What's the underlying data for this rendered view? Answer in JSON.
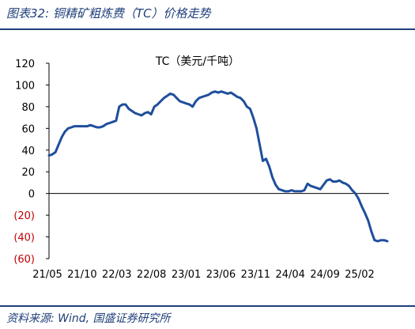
{
  "figure": {
    "title": "图表32:  铜精矿粗炼费（TC）价格走势",
    "source": "资料来源:  Wind,  国盛证券研究所"
  },
  "colors": {
    "line": "#1f4e9c",
    "negative_tick": "#c00000",
    "header_rule": "#1f3f7a"
  },
  "chart_data": {
    "type": "line",
    "title": "TC（美元/千吨）",
    "xlabel": "",
    "ylabel": "",
    "ylim": [
      -60,
      120
    ],
    "yticks": [
      120,
      100,
      80,
      60,
      40,
      20,
      0,
      -20,
      -40,
      -60
    ],
    "ytick_labels": [
      "120",
      "100",
      "80",
      "60",
      "40",
      "20",
      "0",
      "(20)",
      "(40)",
      "(60)"
    ],
    "xticks": [
      "21/05",
      "21/10",
      "22/03",
      "22/08",
      "23/01",
      "23/06",
      "23/11",
      "24/04",
      "24/09",
      "25/02"
    ],
    "grid": false,
    "legend": "none",
    "series": [
      {
        "values": [
          35,
          36,
          38,
          45,
          52,
          57,
          60,
          61,
          62,
          62,
          62,
          62,
          62,
          63,
          62,
          61,
          61,
          62,
          64,
          65,
          66,
          67,
          80,
          82,
          82,
          78,
          76,
          74,
          73,
          72,
          74,
          75,
          73,
          80,
          82,
          85,
          88,
          90,
          92,
          91,
          88,
          85,
          84,
          83,
          82,
          80,
          85,
          88,
          89,
          90,
          91,
          93,
          94,
          93,
          94,
          93,
          92,
          93,
          91,
          89,
          88,
          85,
          80,
          78,
          70,
          60,
          45,
          30,
          32,
          25,
          15,
          8,
          4,
          3,
          2,
          2,
          3,
          2,
          2,
          2,
          3,
          9,
          7,
          6,
          5,
          4,
          8,
          12,
          13,
          11,
          11,
          12,
          10,
          9,
          7,
          3,
          0,
          -5,
          -12,
          -18,
          -25,
          -35,
          -43,
          -44,
          -43,
          -43,
          -44
        ]
      }
    ]
  }
}
